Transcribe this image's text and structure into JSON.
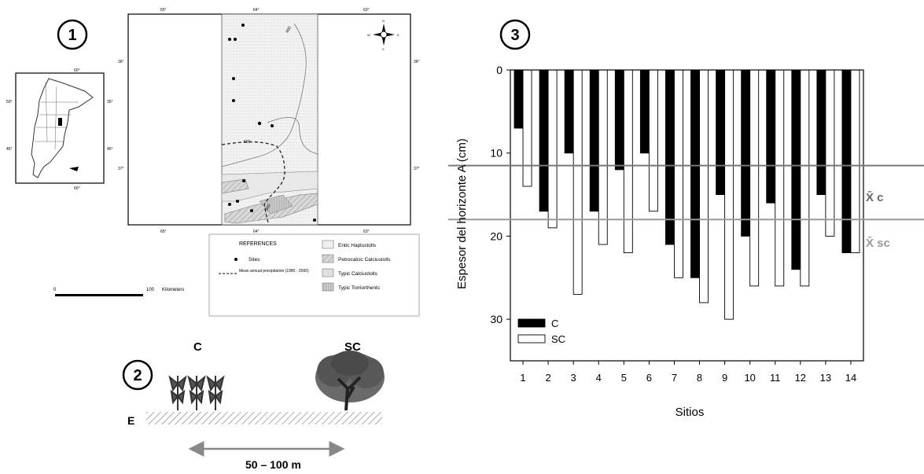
{
  "panel1": {
    "badge": "1",
    "map_lon_labels": [
      "65°",
      "64°",
      "63°"
    ],
    "map_lat_labels": [
      "36°",
      "37°"
    ],
    "isohyet_labels": [
      "600",
      "500"
    ],
    "inset_labels": [
      "50°",
      "35°",
      "45°",
      "60°"
    ],
    "compass_letters": [
      "N",
      "E",
      "S",
      "W"
    ],
    "scale": {
      "start": "0",
      "end": "100",
      "unit": "Kilometers"
    },
    "references": {
      "title": "REFERENCES",
      "sites_label": "Sites",
      "precip_label": "Mean annual precipitation  (1980 - 2000)",
      "soil_types": [
        "Entic Haplustolls",
        "Petrocalcic Calciustolls",
        "Typic Calciustolls",
        "Typic Torriorthents"
      ]
    }
  },
  "panel2": {
    "badge": "2",
    "label_c": "C",
    "label_sc": "SC",
    "label_e": "E",
    "distance": "50 – 100 m"
  },
  "panel3": {
    "badge": "3",
    "mean_c_label": "X̄ c",
    "mean_sc_label": "X̄ sc"
  },
  "chart_data": {
    "type": "bar",
    "categories": [
      "1",
      "2",
      "3",
      "4",
      "5",
      "6",
      "7",
      "8",
      "9",
      "10",
      "11",
      "12",
      "13",
      "14"
    ],
    "series": [
      {
        "name": "C",
        "values": [
          7,
          17,
          10,
          17,
          12,
          10,
          21,
          25,
          15,
          20,
          16,
          24,
          15,
          22
        ]
      },
      {
        "name": "SC",
        "values": [
          14,
          19,
          27,
          21,
          22,
          17,
          25,
          28,
          30,
          26,
          26,
          26,
          20,
          22
        ]
      }
    ],
    "xlabel": "Sitios",
    "ylabel": "Espesor del horizonte A (cm)",
    "yticks": [
      "0",
      "10",
      "20",
      "30"
    ],
    "ylim": [
      0,
      35
    ],
    "y_inverted": true,
    "reference_lines": [
      11.5,
      18
    ],
    "colors": {
      "C": "#000000",
      "SC": "#ffffff",
      "mean_c": "#777777",
      "mean_sc": "#999999"
    },
    "legend_position": "bottom-left"
  }
}
